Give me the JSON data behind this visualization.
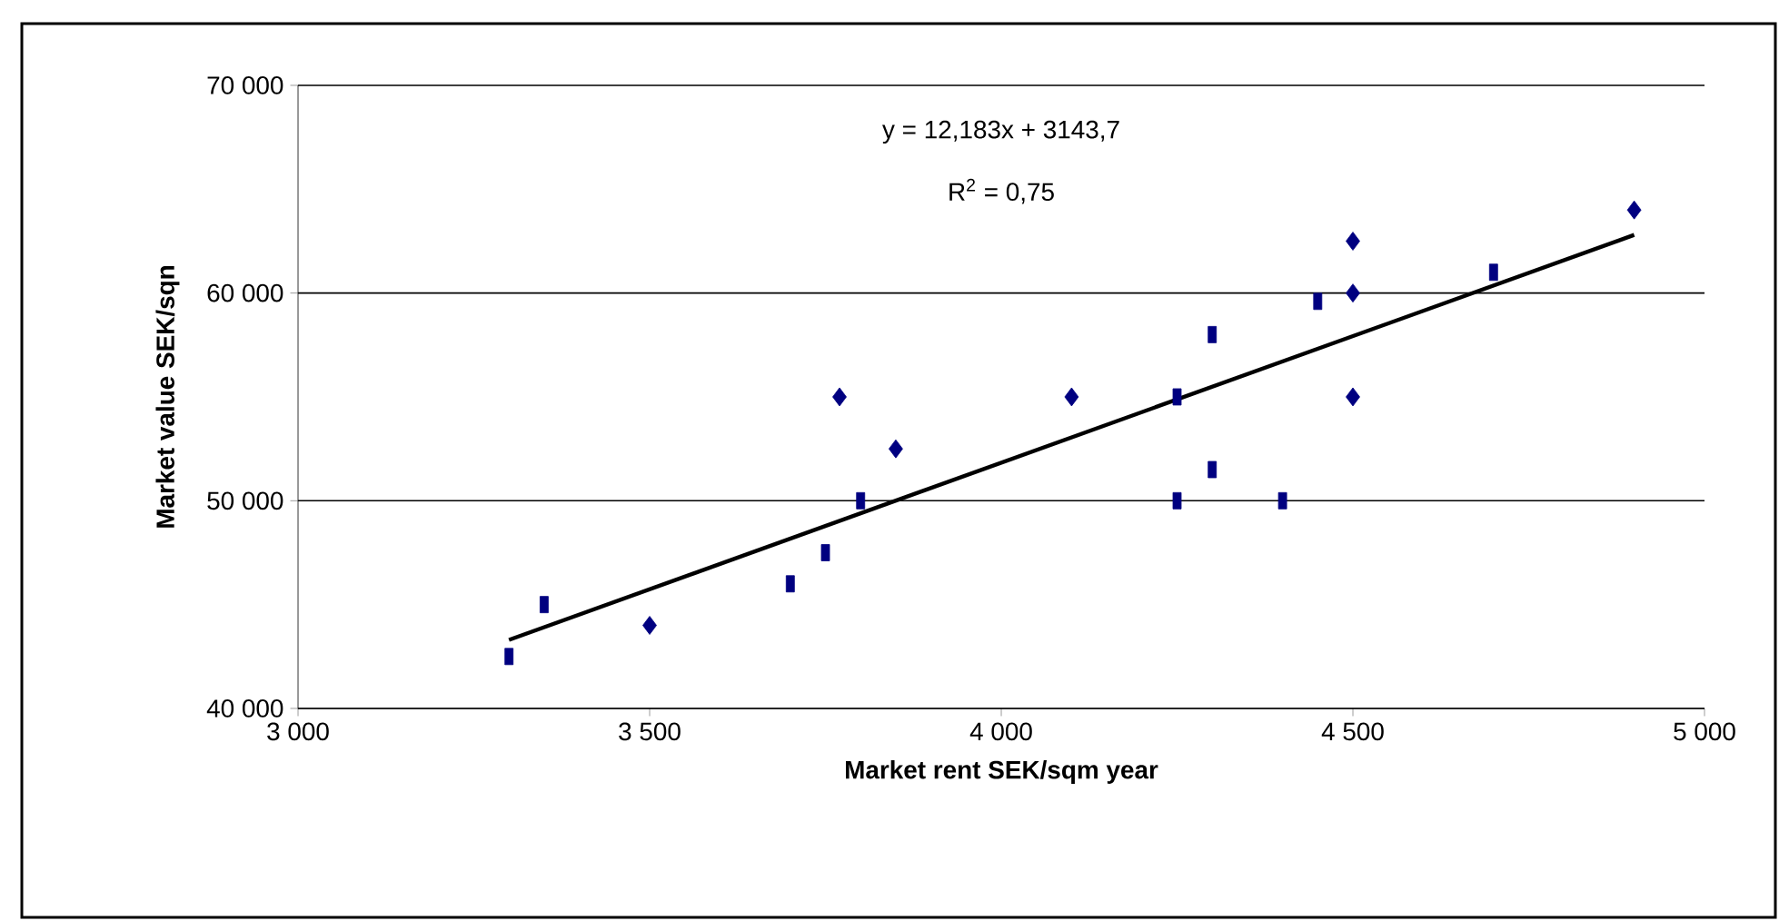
{
  "chart_data": {
    "type": "scatter",
    "xlabel": "Market rent SEK/sqm year",
    "ylabel": "Market value SEK/sqn",
    "xlim": [
      3000,
      5000
    ],
    "xticks": [
      {
        "value": 3000,
        "label": "3 000"
      },
      {
        "value": 3500,
        "label": "3 500"
      },
      {
        "value": 4000,
        "label": "4 000"
      },
      {
        "value": 4500,
        "label": "4 500"
      },
      {
        "value": 5000,
        "label": "5 000"
      }
    ],
    "ylim": [
      40000,
      70000
    ],
    "yticks": [
      {
        "value": 40000,
        "label": "40 000"
      },
      {
        "value": 50000,
        "label": "50 000"
      },
      {
        "value": 60000,
        "label": "60 000"
      },
      {
        "value": 70000,
        "label": "70 000"
      }
    ],
    "grid": "y",
    "annotations": [
      "y = 12,183x + 3143,7",
      "R$^{2}$ = 0,75"
    ],
    "series": [
      {
        "type": "scatter",
        "marker": "diamond",
        "color": "#000080",
        "x": [
          3500,
          3770,
          3850,
          4100,
          4500,
          4500,
          4500,
          4900
        ],
        "values": [
          44000,
          55000,
          52500,
          55000,
          55000,
          60000,
          62500,
          64000
        ]
      },
      {
        "type": "scatter",
        "marker": "square",
        "color": "#000080",
        "x": [
          3300,
          3350,
          3700,
          3750,
          3800,
          4250,
          4250,
          4300,
          4300,
          4400,
          4450,
          4700
        ],
        "values": [
          42500,
          45000,
          46000,
          47500,
          50000,
          55000,
          50000,
          58000,
          51500,
          50000,
          59600,
          61000
        ]
      },
      {
        "type": "line",
        "marker": "none",
        "color": "#000000",
        "x": [
          3300,
          4900
        ],
        "values": [
          43300,
          62800
        ]
      }
    ]
  }
}
